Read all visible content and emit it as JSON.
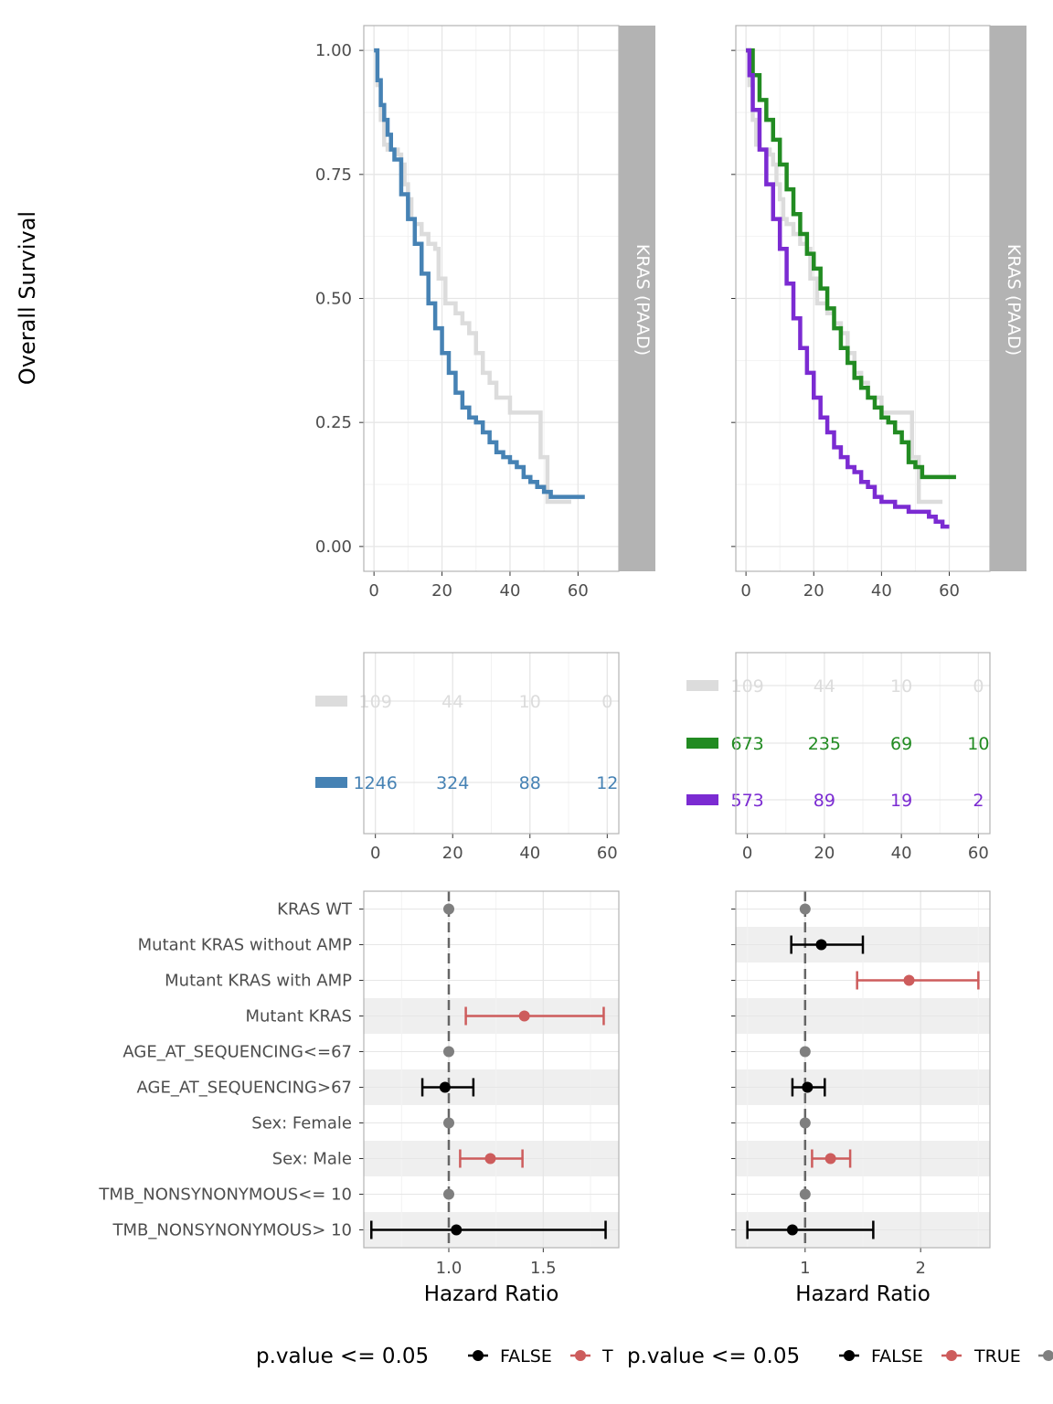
{
  "figure": {
    "y_axis_title": "Overall Survival",
    "strip_label": "KRAS (PAAD)",
    "forest_xlabel": "Hazard Ratio",
    "legend_title": "p.value <= 0.05",
    "legend_false": "FALSE",
    "legend_true_left": "T",
    "legend_true_right": "TRUE"
  },
  "colors": {
    "grey_curve": "#dcdcdc",
    "blue": "#4682b4",
    "green": "#228b22",
    "purple": "#7b2bd2",
    "sig_true": "#cd5c5c",
    "sig_false": "#000000",
    "reference": "#7f7f7f",
    "strip": "#b3b3b3"
  },
  "chart_data": [
    {
      "id": "km-left",
      "type": "line",
      "ylabel": "Overall Survival",
      "xlim": [
        -3,
        72
      ],
      "ylim": [
        -0.05,
        1.05
      ],
      "x_ticks": [
        0,
        20,
        40,
        60
      ],
      "y_ticks": [
        0.0,
        0.25,
        0.5,
        0.75,
        1.0
      ],
      "y_tick_labels": [
        "0.00",
        "0.25",
        "0.50",
        "0.75",
        "1.00"
      ],
      "strip": "KRAS (PAAD)",
      "series": [
        {
          "color": "#dcdcdc",
          "x": [
            0,
            1,
            2,
            3,
            4,
            5,
            6,
            7,
            8,
            9,
            10,
            11,
            12,
            14,
            16,
            18,
            19,
            20,
            21,
            22,
            24,
            26,
            28,
            30,
            32,
            34,
            36,
            38,
            40,
            42,
            44,
            46,
            48,
            49,
            50,
            51,
            55,
            58
          ],
          "y": [
            1.0,
            0.93,
            0.86,
            0.81,
            0.8,
            0.8,
            0.8,
            0.79,
            0.77,
            0.73,
            0.7,
            0.66,
            0.65,
            0.63,
            0.61,
            0.6,
            0.54,
            0.54,
            0.49,
            0.49,
            0.47,
            0.45,
            0.43,
            0.39,
            0.35,
            0.33,
            0.3,
            0.3,
            0.27,
            0.27,
            0.27,
            0.27,
            0.27,
            0.18,
            0.18,
            0.09,
            0.09,
            0.09
          ]
        },
        {
          "color": "#4682b4",
          "x": [
            0,
            1,
            2,
            3,
            4,
            5,
            6,
            8,
            10,
            12,
            14,
            16,
            18,
            20,
            22,
            24,
            26,
            28,
            30,
            32,
            34,
            36,
            38,
            40,
            42,
            44,
            46,
            48,
            50,
            52,
            54,
            56,
            58,
            62
          ],
          "y": [
            1.0,
            0.94,
            0.89,
            0.86,
            0.83,
            0.8,
            0.78,
            0.71,
            0.66,
            0.61,
            0.55,
            0.49,
            0.44,
            0.39,
            0.35,
            0.31,
            0.28,
            0.26,
            0.25,
            0.23,
            0.21,
            0.19,
            0.18,
            0.17,
            0.16,
            0.14,
            0.13,
            0.12,
            0.11,
            0.1,
            0.1,
            0.1,
            0.1,
            0.1
          ]
        }
      ]
    },
    {
      "id": "km-right",
      "type": "line",
      "xlim": [
        -3,
        72
      ],
      "ylim": [
        -0.05,
        1.05
      ],
      "x_ticks": [
        0,
        20,
        40,
        60
      ],
      "y_ticks": [
        0.0,
        0.25,
        0.5,
        0.75,
        1.0
      ],
      "strip": "KRAS (PAAD)",
      "series": [
        {
          "color": "#dcdcdc",
          "x": [
            0,
            1,
            2,
            3,
            4,
            5,
            6,
            7,
            8,
            9,
            10,
            11,
            12,
            14,
            16,
            18,
            19,
            20,
            21,
            22,
            24,
            26,
            28,
            30,
            32,
            34,
            36,
            38,
            40,
            42,
            44,
            46,
            48,
            49,
            50,
            51,
            55,
            58
          ],
          "y": [
            1.0,
            0.93,
            0.86,
            0.81,
            0.8,
            0.8,
            0.8,
            0.79,
            0.77,
            0.73,
            0.7,
            0.66,
            0.65,
            0.63,
            0.61,
            0.6,
            0.54,
            0.54,
            0.49,
            0.49,
            0.47,
            0.45,
            0.43,
            0.39,
            0.35,
            0.33,
            0.3,
            0.3,
            0.27,
            0.27,
            0.27,
            0.27,
            0.27,
            0.18,
            0.18,
            0.09,
            0.09,
            0.09
          ]
        },
        {
          "color": "#228b22",
          "x": [
            0,
            2,
            4,
            6,
            8,
            10,
            12,
            14,
            16,
            18,
            20,
            22,
            24,
            26,
            28,
            30,
            32,
            34,
            36,
            38,
            40,
            42,
            44,
            46,
            48,
            50,
            52,
            56,
            62
          ],
          "y": [
            1.0,
            0.95,
            0.9,
            0.86,
            0.82,
            0.77,
            0.72,
            0.67,
            0.63,
            0.59,
            0.56,
            0.52,
            0.48,
            0.44,
            0.4,
            0.37,
            0.34,
            0.32,
            0.3,
            0.28,
            0.26,
            0.25,
            0.23,
            0.21,
            0.17,
            0.16,
            0.14,
            0.14,
            0.14
          ]
        },
        {
          "color": "#7b2bd2",
          "x": [
            0,
            1,
            2,
            4,
            6,
            8,
            10,
            12,
            14,
            16,
            18,
            20,
            22,
            24,
            26,
            28,
            30,
            32,
            34,
            36,
            38,
            40,
            42,
            44,
            46,
            48,
            50,
            52,
            54,
            56,
            58,
            60
          ],
          "y": [
            1.0,
            0.95,
            0.88,
            0.8,
            0.73,
            0.66,
            0.6,
            0.53,
            0.46,
            0.4,
            0.35,
            0.3,
            0.26,
            0.23,
            0.2,
            0.18,
            0.16,
            0.15,
            0.13,
            0.12,
            0.1,
            0.09,
            0.09,
            0.08,
            0.08,
            0.07,
            0.07,
            0.07,
            0.06,
            0.05,
            0.04,
            0.04
          ]
        }
      ]
    },
    {
      "id": "risk-left",
      "type": "table",
      "xlim": [
        -3,
        63
      ],
      "x_ticks": [
        0,
        20,
        40,
        60
      ],
      "rows": [
        {
          "color": "#dcdcdc",
          "values": [
            "109",
            "44",
            "10",
            "0"
          ]
        },
        {
          "color": "#4682b4",
          "values": [
            "1246",
            "324",
            "88",
            "12"
          ]
        }
      ]
    },
    {
      "id": "risk-right",
      "type": "table",
      "xlim": [
        -3,
        63
      ],
      "x_ticks": [
        0,
        20,
        40,
        60
      ],
      "rows": [
        {
          "color": "#dcdcdc",
          "values": [
            "109",
            "44",
            "10",
            "0"
          ]
        },
        {
          "color": "#228b22",
          "values": [
            "673",
            "235",
            "69",
            "10"
          ]
        },
        {
          "color": "#7b2bd2",
          "values": [
            "573",
            "89",
            "19",
            "2"
          ]
        }
      ]
    },
    {
      "id": "forest-left",
      "type": "scatter",
      "xlabel": "Hazard Ratio",
      "xlim": [
        0.55,
        1.9
      ],
      "x_ticks": [
        1.0,
        1.5
      ],
      "x_tick_labels": [
        "1.0",
        "1.5"
      ],
      "categories": [
        "KRAS WT",
        "Mutant KRAS without AMP",
        "Mutant KRAS with AMP",
        "Mutant KRAS",
        "AGE_AT_SEQUENCING<=67",
        "AGE_AT_SEQUENCING>67",
        "Sex: Female",
        "Sex: Male",
        "TMB_NONSYNONYMOUS<= 10",
        "TMB_NONSYNONYMOUS> 10"
      ],
      "shaded_rows": [
        3,
        5,
        7,
        9
      ],
      "points": [
        {
          "row": 0,
          "hr": 1.0,
          "status": "reference"
        },
        {
          "row": 3,
          "hr": 1.4,
          "lo": 1.09,
          "hi": 1.82,
          "status": "TRUE"
        },
        {
          "row": 4,
          "hr": 1.0,
          "status": "reference"
        },
        {
          "row": 5,
          "hr": 0.98,
          "lo": 0.86,
          "hi": 1.13,
          "status": "FALSE"
        },
        {
          "row": 6,
          "hr": 1.0,
          "status": "reference"
        },
        {
          "row": 7,
          "hr": 1.22,
          "lo": 1.06,
          "hi": 1.39,
          "status": "TRUE"
        },
        {
          "row": 8,
          "hr": 1.0,
          "status": "reference"
        },
        {
          "row": 9,
          "hr": 1.04,
          "lo": 0.59,
          "hi": 1.83,
          "status": "FALSE"
        }
      ]
    },
    {
      "id": "forest-right",
      "type": "scatter",
      "xlabel": "Hazard Ratio",
      "xlim": [
        0.4,
        2.6
      ],
      "x_ticks": [
        1,
        2
      ],
      "x_tick_labels": [
        "1",
        "2"
      ],
      "shaded_rows": [
        1,
        3,
        5,
        7,
        9
      ],
      "points": [
        {
          "row": 0,
          "hr": 1.0,
          "status": "reference"
        },
        {
          "row": 1,
          "hr": 1.14,
          "lo": 0.88,
          "hi": 1.5,
          "status": "FALSE"
        },
        {
          "row": 2,
          "hr": 1.9,
          "lo": 1.45,
          "hi": 2.5,
          "status": "TRUE"
        },
        {
          "row": 4,
          "hr": 1.0,
          "status": "reference"
        },
        {
          "row": 5,
          "hr": 1.02,
          "lo": 0.89,
          "hi": 1.17,
          "status": "FALSE"
        },
        {
          "row": 6,
          "hr": 1.0,
          "status": "reference"
        },
        {
          "row": 7,
          "hr": 1.22,
          "lo": 1.06,
          "hi": 1.39,
          "status": "TRUE"
        },
        {
          "row": 8,
          "hr": 1.0,
          "status": "reference"
        },
        {
          "row": 9,
          "hr": 0.89,
          "lo": 0.5,
          "hi": 1.59,
          "status": "FALSE"
        }
      ]
    }
  ]
}
